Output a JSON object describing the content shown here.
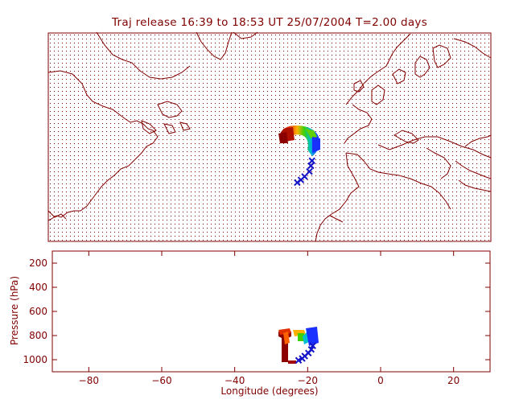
{
  "chart_data": [
    {
      "type": "scatter",
      "title": "Traj release 16:39 to 18:53 UT 25/07/2004     T=2.00 days",
      "panel": "map",
      "colors": {
        "frame": "#800000",
        "coast": "#800000",
        "grid_dots": "#800000",
        "marker_cross": "#1414c8"
      },
      "trajectory_cluster": {
        "lon_range": [
          -27,
          -17
        ],
        "lat_range": [
          28,
          41
        ]
      },
      "crosses": [
        {
          "lon": -22.5,
          "lat": 25.5
        },
        {
          "lon": -21.5,
          "lat": 26.3
        },
        {
          "lon": -20.5,
          "lat": 27.3
        },
        {
          "lon": -19.2,
          "lat": 28.8
        },
        {
          "lon": -18.8,
          "lat": 30.5
        },
        {
          "lon": -18.5,
          "lat": 32.0
        }
      ]
    },
    {
      "type": "scatter",
      "panel": "pressure",
      "xlabel": "Longitude  (degrees)",
      "ylabel": "Pressure  (hPa)",
      "xlim": [
        -90,
        30
      ],
      "ylim": [
        1100,
        100
      ],
      "xticks": [
        -80,
        -60,
        -40,
        -20,
        0,
        20
      ],
      "yticks": [
        200,
        400,
        600,
        800,
        1000
      ],
      "xtick_labels": [
        "−80",
        "−60",
        "−40",
        "−20",
        "0",
        "20"
      ],
      "ytick_labels": [
        "200",
        "400",
        "600",
        "800",
        "1000"
      ],
      "crosses": [
        {
          "lon": -22.5,
          "p": 1005
        },
        {
          "lon": -21.5,
          "p": 990
        },
        {
          "lon": -20.8,
          "p": 970
        },
        {
          "lon": -19.8,
          "p": 945
        },
        {
          "lon": -19.0,
          "p": 915
        },
        {
          "lon": -18.6,
          "p": 885
        }
      ]
    }
  ]
}
